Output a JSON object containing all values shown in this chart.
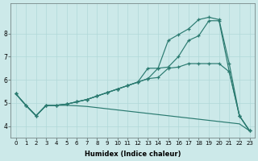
{
  "xlabel": "Humidex (Indice chaleur)",
  "background_color": "#cce9e9",
  "grid_color": "#b0d8d8",
  "line_color": "#2a7a70",
  "x": [
    0,
    1,
    2,
    3,
    4,
    5,
    6,
    7,
    8,
    9,
    10,
    11,
    12,
    13,
    14,
    15,
    16,
    17,
    18,
    19,
    20,
    21,
    22,
    23
  ],
  "line_top": [
    5.4,
    4.9,
    4.45,
    4.9,
    4.9,
    4.95,
    5.05,
    5.15,
    5.3,
    5.45,
    5.6,
    5.75,
    5.9,
    6.5,
    6.5,
    7.7,
    7.95,
    8.2,
    8.6,
    8.7,
    8.6,
    6.7,
    4.45,
    3.8
  ],
  "line_mid1": [
    5.4,
    4.9,
    4.45,
    4.9,
    4.9,
    4.95,
    5.05,
    5.15,
    5.3,
    5.45,
    5.6,
    5.75,
    5.9,
    6.05,
    6.5,
    6.55,
    7.0,
    7.7,
    7.9,
    8.55,
    8.55,
    6.35,
    4.45,
    3.8
  ],
  "line_mid2": [
    5.4,
    4.9,
    4.45,
    4.9,
    4.9,
    4.95,
    5.05,
    5.15,
    5.3,
    5.45,
    5.6,
    5.75,
    5.9,
    6.05,
    6.1,
    6.5,
    6.55,
    6.7,
    6.7,
    6.7,
    6.7,
    6.35,
    4.45,
    3.8
  ],
  "line_bot": [
    5.4,
    4.9,
    4.45,
    4.9,
    4.9,
    4.9,
    4.88,
    4.85,
    4.8,
    4.75,
    4.7,
    4.65,
    4.6,
    4.55,
    4.5,
    4.45,
    4.4,
    4.35,
    4.3,
    4.25,
    4.2,
    4.15,
    4.1,
    3.8
  ],
  "ylim": [
    3.5,
    9.3
  ],
  "yticks": [
    4,
    5,
    6,
    7,
    8
  ],
  "xlim": [
    -0.5,
    23.5
  ],
  "xticks": [
    0,
    1,
    2,
    3,
    4,
    5,
    6,
    7,
    8,
    9,
    10,
    11,
    12,
    13,
    14,
    15,
    16,
    17,
    18,
    19,
    20,
    21,
    22,
    23
  ]
}
